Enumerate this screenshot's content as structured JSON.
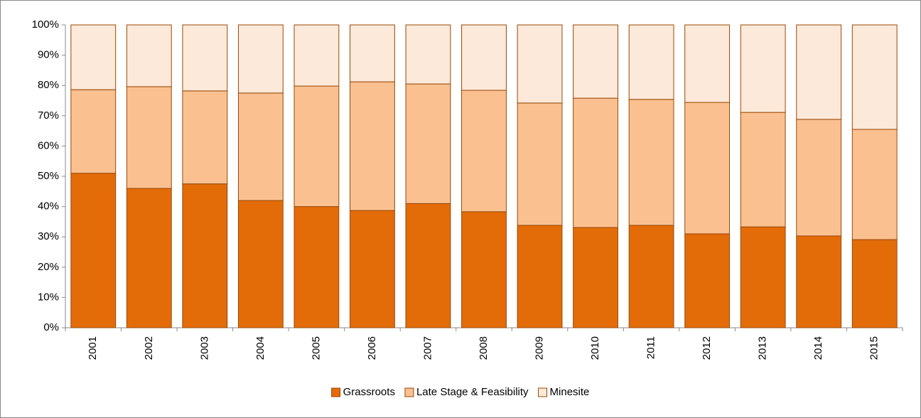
{
  "chart_data": {
    "type": "stacked_bar",
    "categories": [
      "2001",
      "2002",
      "2003",
      "2004",
      "2005",
      "2006",
      "2007",
      "2008",
      "2009",
      "2010",
      "2011",
      "2012",
      "2013",
      "2014",
      "2015"
    ],
    "series": [
      {
        "name": "Grassroots",
        "color": "#e36c09",
        "values": [
          51,
          46,
          47.5,
          42,
          40,
          38.7,
          41,
          38.3,
          33.8,
          33.1,
          33.8,
          31,
          33.3,
          30.3,
          29.1
        ]
      },
      {
        "name": "Late Stage & Feasibility",
        "color": "#fac090",
        "values": [
          27.6,
          33.6,
          30.7,
          35.5,
          39.8,
          42.5,
          39.5,
          40.1,
          40.4,
          42.7,
          41.6,
          43.4,
          37.8,
          38.5,
          36.4
        ]
      },
      {
        "name": "Minesite",
        "color": "#fde9d9",
        "values": [
          21.4,
          20.4,
          21.8,
          22.5,
          20.2,
          18.8,
          19.5,
          21.6,
          25.8,
          24.2,
          24.6,
          25.6,
          28.9,
          31.2,
          34.5
        ]
      }
    ],
    "ylim": [
      0,
      100
    ],
    "yticks": [
      {
        "value": 0,
        "label": "0%"
      },
      {
        "value": 10,
        "label": "10%"
      },
      {
        "value": 20,
        "label": "20%"
      },
      {
        "value": 30,
        "label": "30%"
      },
      {
        "value": 40,
        "label": "40%"
      },
      {
        "value": 50,
        "label": "50%"
      },
      {
        "value": 60,
        "label": "60%"
      },
      {
        "value": 70,
        "label": "70%"
      },
      {
        "value": 80,
        "label": "80%"
      },
      {
        "value": 90,
        "label": "90%"
      },
      {
        "value": 100,
        "label": "100%"
      }
    ],
    "legend": "bottom"
  }
}
